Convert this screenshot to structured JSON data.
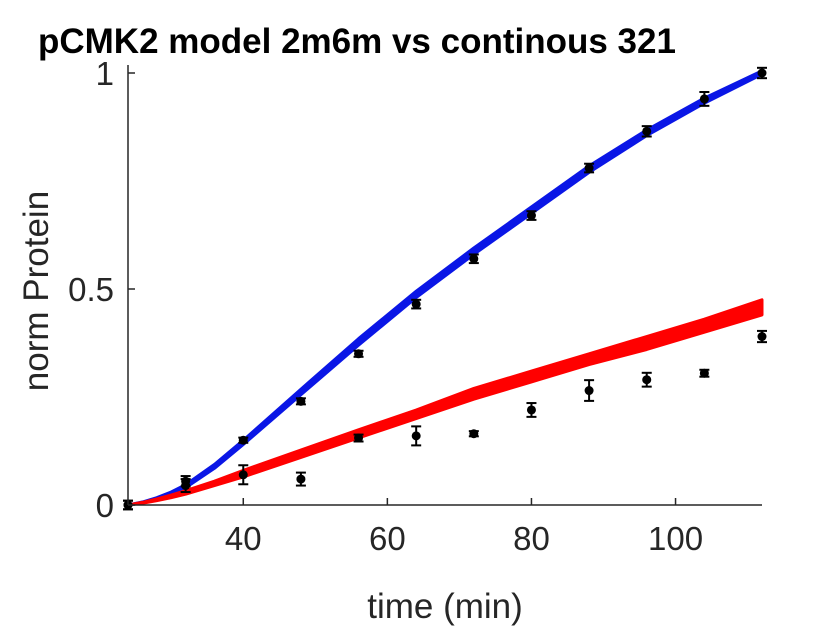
{
  "chart_data": {
    "type": "line",
    "title": "pCMK2 model 2m6m vs continous 321",
    "xlabel": "time (min)",
    "ylabel": "norm Protein",
    "xlim": [
      24,
      112
    ],
    "ylim": [
      0,
      1
    ],
    "x_ticks": [
      40,
      60,
      80,
      100
    ],
    "y_ticks": [
      0,
      0.5,
      1
    ],
    "y_tick_labels": [
      "0",
      "0.5",
      "1"
    ],
    "grid": false,
    "legend": "none",
    "colors": {
      "blue": "#0a16e6",
      "red": "#ff0000",
      "points": "#000000"
    },
    "series": [
      {
        "kind": "model-band",
        "color": "blue",
        "x": [
          24,
          26,
          28,
          30,
          32,
          36,
          40,
          48,
          56,
          64,
          72,
          80,
          88,
          96,
          104,
          112
        ],
        "lower": [
          0.0,
          0.005,
          0.013,
          0.024,
          0.04,
          0.085,
          0.14,
          0.255,
          0.37,
          0.48,
          0.58,
          0.675,
          0.77,
          0.855,
          0.93,
          0.997
        ],
        "upper": [
          0.0,
          0.007,
          0.017,
          0.03,
          0.047,
          0.094,
          0.15,
          0.268,
          0.385,
          0.495,
          0.595,
          0.69,
          0.785,
          0.868,
          0.942,
          1.005
        ]
      },
      {
        "kind": "model-band",
        "color": "red",
        "x": [
          24,
          26,
          28,
          30,
          32,
          36,
          40,
          48,
          56,
          64,
          72,
          80,
          88,
          96,
          104,
          112
        ],
        "lower": [
          0.0,
          0.004,
          0.01,
          0.017,
          0.025,
          0.045,
          0.065,
          0.11,
          0.155,
          0.2,
          0.245,
          0.285,
          0.325,
          0.36,
          0.4,
          0.44
        ],
        "upper": [
          0.0,
          0.006,
          0.014,
          0.023,
          0.033,
          0.055,
          0.08,
          0.127,
          0.174,
          0.22,
          0.27,
          0.31,
          0.35,
          0.39,
          0.43,
          0.475
        ]
      },
      {
        "kind": "points",
        "color": "points",
        "x": [
          24,
          32,
          40,
          48,
          56,
          64,
          72,
          80,
          88,
          96,
          104,
          112
        ],
        "y": [
          0.0,
          0.055,
          0.15,
          0.24,
          0.35,
          0.465,
          0.57,
          0.67,
          0.78,
          0.865,
          0.94,
          1.0
        ],
        "err": [
          0.01,
          0.012,
          0.006,
          0.007,
          0.007,
          0.01,
          0.01,
          0.01,
          0.01,
          0.012,
          0.016,
          0.012
        ]
      },
      {
        "kind": "points",
        "color": "points",
        "x": [
          24,
          32,
          40,
          48,
          56,
          64,
          72,
          80,
          88,
          96,
          104,
          112
        ],
        "y": [
          0.0,
          0.045,
          0.07,
          0.06,
          0.155,
          0.16,
          0.165,
          0.22,
          0.265,
          0.29,
          0.305,
          0.39
        ],
        "err": [
          0.01,
          0.015,
          0.022,
          0.015,
          0.008,
          0.022,
          0.006,
          0.016,
          0.024,
          0.016,
          0.008,
          0.013
        ]
      }
    ]
  }
}
